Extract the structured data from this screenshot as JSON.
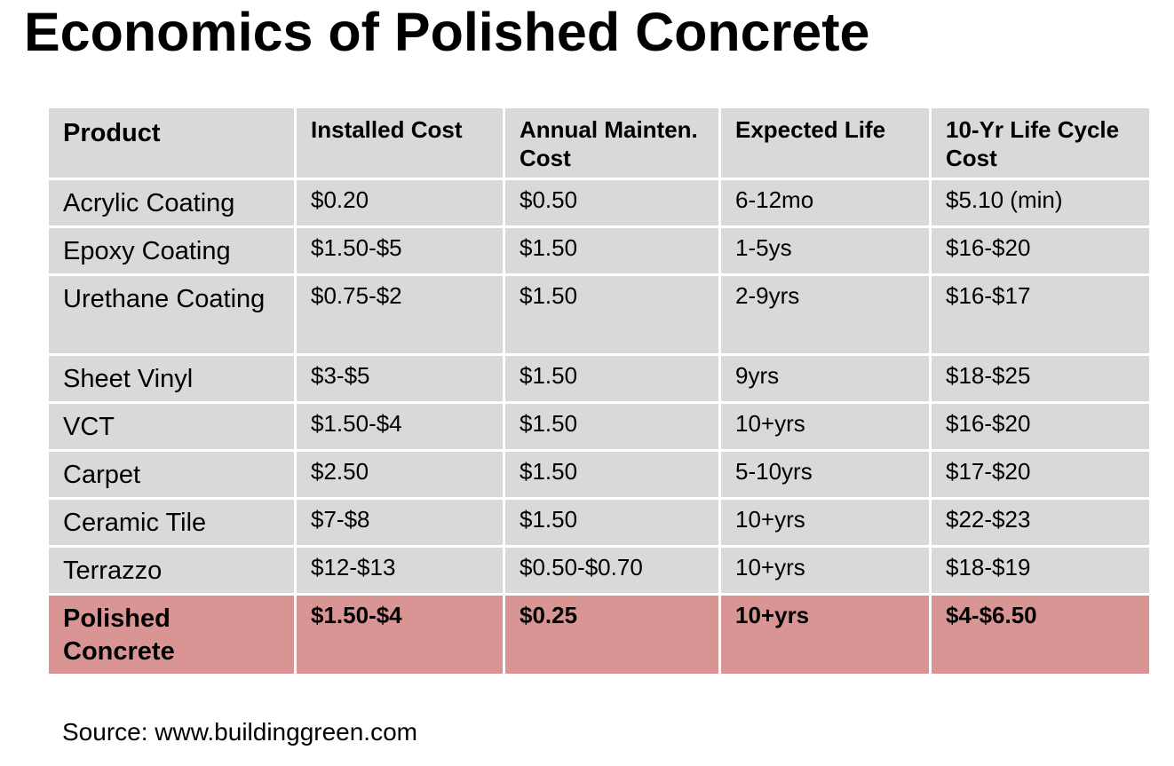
{
  "title": "Economics of Polished Concrete",
  "table": {
    "headers": [
      "Product",
      "Installed Cost",
      "Annual Mainten. Cost",
      "Expected Life",
      "10-Yr Life Cycle Cost"
    ],
    "rows": [
      [
        "Acrylic Coating",
        "$0.20",
        "$0.50",
        "6-12mo",
        "$5.10 (min)"
      ],
      [
        "Epoxy Coating",
        "$1.50-$5",
        "$1.50",
        "1-5ys",
        "$16-$20"
      ],
      [
        "Urethane Coating",
        "$0.75-$2",
        "$1.50",
        "2-9yrs",
        "$16-$17"
      ],
      [
        "Sheet Vinyl",
        "$3-$5",
        "$1.50",
        "9yrs",
        "$18-$25"
      ],
      [
        "VCT",
        "$1.50-$4",
        "$1.50",
        "10+yrs",
        "$16-$20"
      ],
      [
        "Carpet",
        "$2.50",
        "$1.50",
        "5-10yrs",
        "$17-$20"
      ],
      [
        "Ceramic Tile",
        "$7-$8",
        "$1.50",
        "10+yrs",
        "$22-$23"
      ],
      [
        "Terrazzo",
        "$12-$13",
        "$0.50-$0.70",
        "10+yrs",
        "$18-$19"
      ],
      [
        "Polished Concrete",
        "$1.50-$4",
        "$0.25",
        "10+yrs",
        "$4-$6.50"
      ]
    ]
  },
  "source": "Source: www.buildinggreen.com",
  "colors": {
    "cell_background": "#d9d9d9",
    "highlight_background": "#d99594",
    "grid_lines": "#ffffff",
    "text": "#000000"
  }
}
